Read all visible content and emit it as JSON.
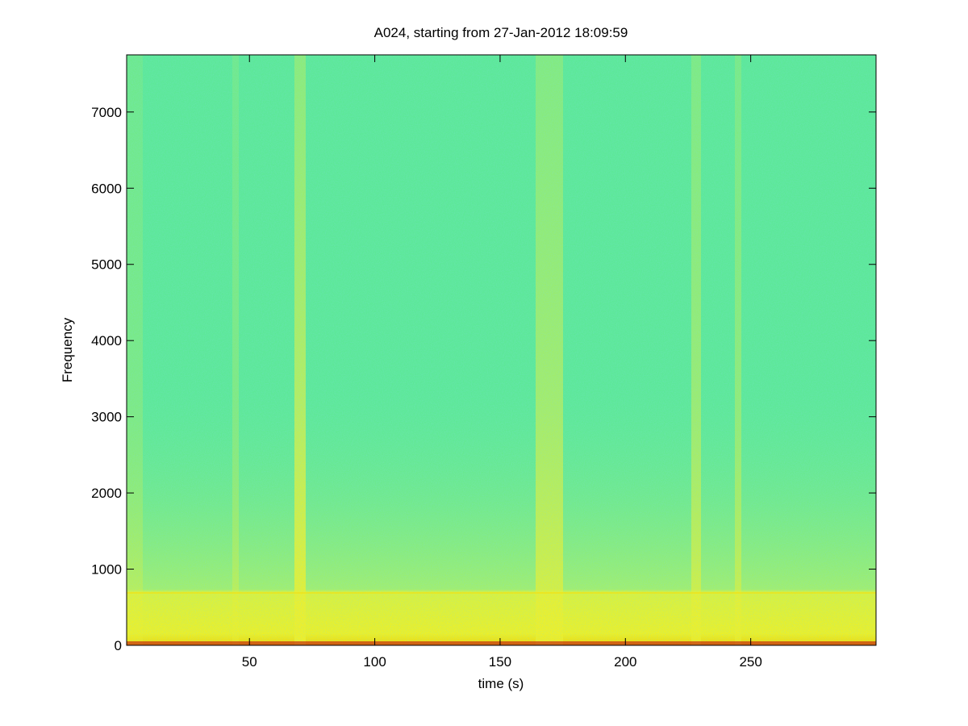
{
  "chart_data": {
    "type": "spectrogram",
    "title": "A024, starting from 27-Jan-2012 18:09:59",
    "xlabel": "time (s)",
    "ylabel": "Frequency",
    "xlim": [
      1,
      300
    ],
    "ylim": [
      0,
      7750
    ],
    "xticks": [
      50,
      100,
      150,
      200,
      250
    ],
    "yticks": [
      0,
      1000,
      2000,
      3000,
      4000,
      5000,
      6000,
      7000
    ]
  }
}
